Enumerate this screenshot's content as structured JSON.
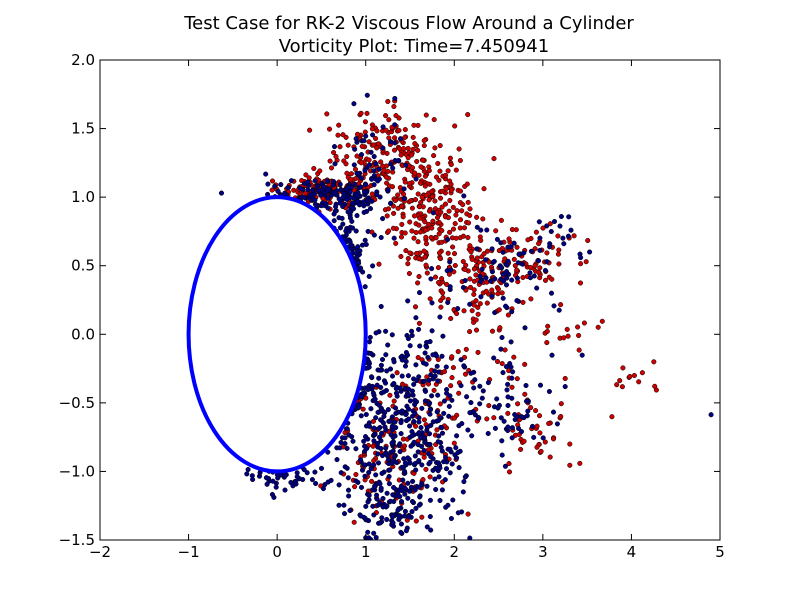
{
  "chart_data": {
    "type": "scatter",
    "title": "Test Case for RK-2 Viscous Flow Around a Cylinder",
    "subtitle": "Vorticity Plot: Time=7.450941",
    "xlabel": "",
    "ylabel": "",
    "xlim": [
      -2,
      5
    ],
    "ylim": [
      -1.5,
      2.0
    ],
    "x_ticks": [
      -2,
      -1,
      0,
      1,
      2,
      3,
      4,
      5
    ],
    "x_tick_labels": [
      "−2",
      "−1",
      "0",
      "1",
      "2",
      "3",
      "4",
      "5"
    ],
    "y_ticks": [
      -1.5,
      -1.0,
      -0.5,
      0.0,
      0.5,
      1.0,
      1.5,
      2.0
    ],
    "y_tick_labels": [
      "−1.5",
      "−1.0",
      "−0.5",
      "0.0",
      "0.5",
      "1.0",
      "1.5",
      "2.0"
    ],
    "grid": false,
    "cylinder": {
      "center": [
        0,
        0
      ],
      "radius": 1,
      "color": "#0000ff"
    },
    "series": [
      {
        "color": "#cc0000",
        "clusters": [
          {
            "x": 0.55,
            "y": 1.05,
            "sx": 0.25,
            "sy": 0.06,
            "n": 160
          },
          {
            "x": 1.2,
            "y": 1.3,
            "sx": 0.25,
            "sy": 0.15,
            "n": 160
          },
          {
            "x": 1.7,
            "y": 0.9,
            "sx": 0.25,
            "sy": 0.25,
            "n": 220
          },
          {
            "x": 2.2,
            "y": 0.45,
            "sx": 0.3,
            "sy": 0.2,
            "n": 130
          },
          {
            "x": 2.8,
            "y": 0.55,
            "sx": 0.3,
            "sy": 0.12,
            "n": 70
          },
          {
            "x": 1.2,
            "y": -0.9,
            "sx": 0.25,
            "sy": 0.25,
            "n": 90
          },
          {
            "x": 1.7,
            "y": -0.6,
            "sx": 0.2,
            "sy": 0.3,
            "n": 70
          },
          {
            "x": 2.5,
            "y": -0.3,
            "sx": 0.4,
            "sy": 0.2,
            "n": 40
          },
          {
            "x": 2.9,
            "y": -0.75,
            "sx": 0.25,
            "sy": 0.12,
            "n": 35
          },
          {
            "x": 3.3,
            "y": 0.0,
            "sx": 0.15,
            "sy": 0.05,
            "n": 14
          },
          {
            "x": 4.1,
            "y": -0.32,
            "sx": 0.25,
            "sy": 0.05,
            "n": 12
          }
        ]
      },
      {
        "color": "#000080",
        "clusters": [
          {
            "x": 0.5,
            "y": 1.02,
            "sx": 0.3,
            "sy": 0.06,
            "n": 120
          },
          {
            "x": 0.8,
            "y": 0.7,
            "sx": 0.12,
            "sy": 0.2,
            "n": 80
          },
          {
            "x": 1.1,
            "y": 1.2,
            "sx": 0.2,
            "sy": 0.2,
            "n": 60
          },
          {
            "x": 1.1,
            "y": -0.7,
            "sx": 0.25,
            "sy": 0.35,
            "n": 170
          },
          {
            "x": 1.6,
            "y": -0.9,
            "sx": 0.3,
            "sy": 0.3,
            "n": 200
          },
          {
            "x": 1.6,
            "y": -0.3,
            "sx": 0.35,
            "sy": 0.25,
            "n": 110
          },
          {
            "x": 2.5,
            "y": 0.5,
            "sx": 0.35,
            "sy": 0.18,
            "n": 80
          },
          {
            "x": 2.7,
            "y": -0.5,
            "sx": 0.3,
            "sy": 0.2,
            "n": 60
          },
          {
            "x": 3.2,
            "y": 0.7,
            "sx": 0.15,
            "sy": 0.1,
            "n": 15
          },
          {
            "x": 1.3,
            "y": -1.3,
            "sx": 0.2,
            "sy": 0.1,
            "n": 60
          },
          {
            "x": 0.2,
            "y": -1.05,
            "sx": 0.3,
            "sy": 0.05,
            "n": 50
          },
          {
            "x": 4.9,
            "y": -0.57,
            "sx": 0.01,
            "sy": 0.01,
            "n": 1
          }
        ]
      }
    ]
  }
}
